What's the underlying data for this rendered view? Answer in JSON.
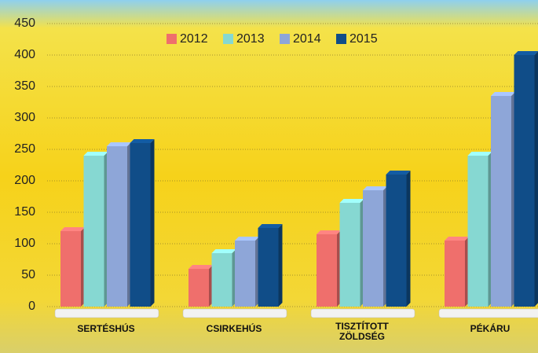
{
  "chart_data": {
    "type": "bar",
    "categories": [
      "SERTÉSHÚS",
      "CSIRKEHÚS",
      "TISZTÍTOTT ZÖLDSÉG",
      "PÉKÁRU"
    ],
    "series": [
      {
        "name": "2012",
        "color": "#ef6f6c",
        "values": [
          120,
          60,
          115,
          105
        ]
      },
      {
        "name": "2013",
        "color": "#86d8d2",
        "values": [
          240,
          85,
          165,
          240
        ]
      },
      {
        "name": "2014",
        "color": "#8ea6d8",
        "values": [
          255,
          105,
          185,
          335
        ]
      },
      {
        "name": "2015",
        "color": "#104d88",
        "values": [
          260,
          125,
          210,
          400
        ]
      }
    ],
    "ylim": [
      0,
      450
    ],
    "yticks": [
      0,
      50,
      100,
      150,
      200,
      250,
      300,
      350,
      400,
      450
    ],
    "grid": true,
    "legend": "top"
  }
}
